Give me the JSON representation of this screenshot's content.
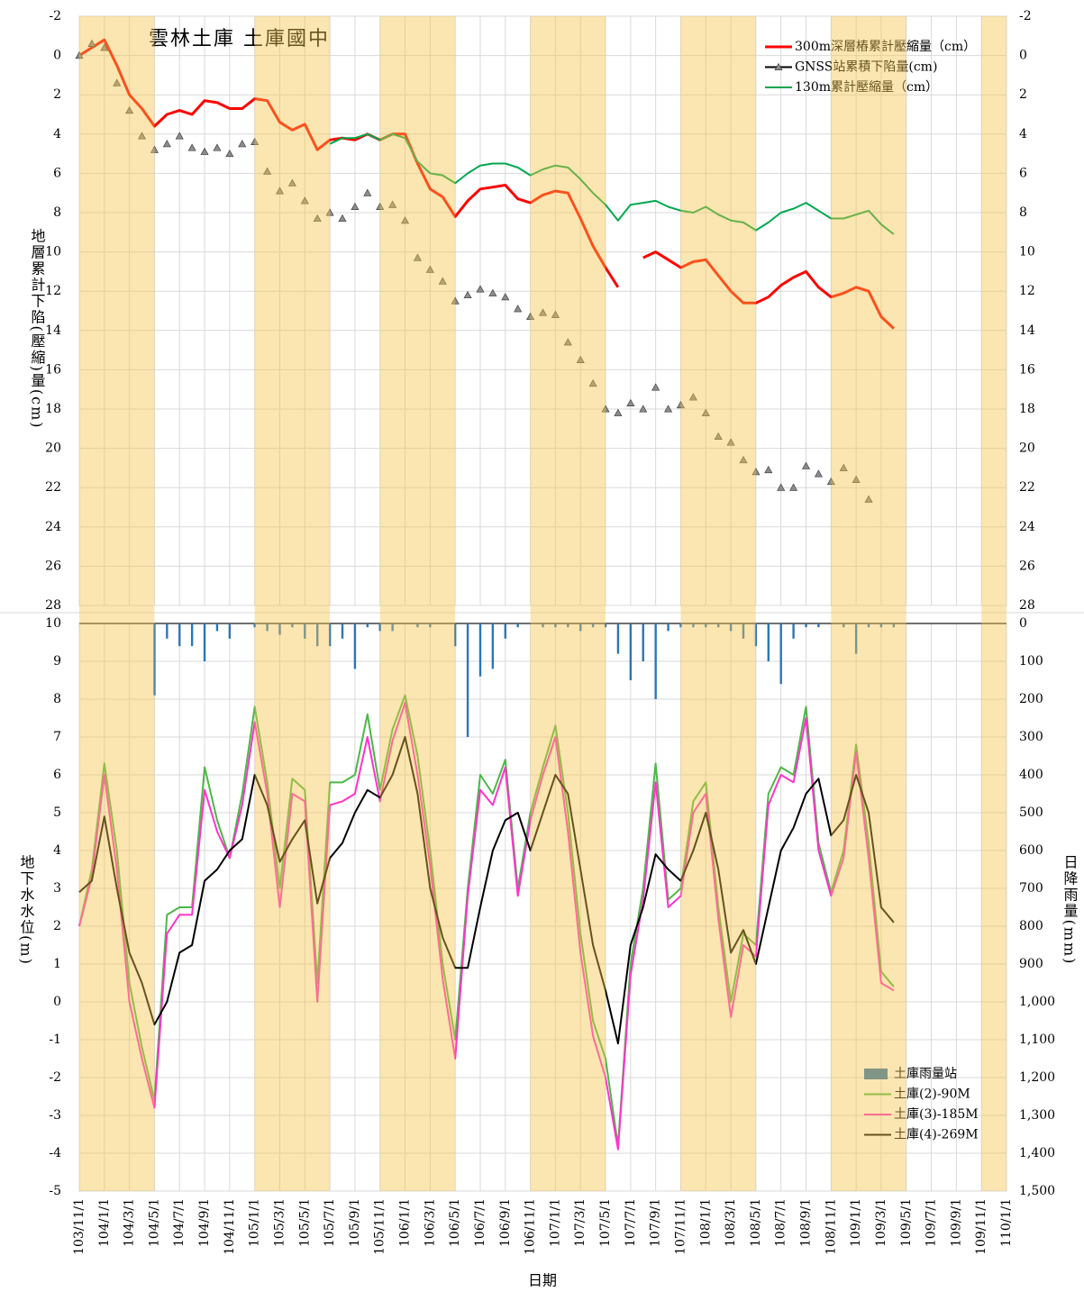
{
  "chart_data": [
    {
      "type": "line",
      "title": "雲林土庫 土庫國中",
      "y_label": "地層累計下陷(壓縮)量(cm)",
      "ylim": [
        28,
        -2
      ],
      "yticks": [
        -2,
        0,
        2,
        4,
        6,
        8,
        10,
        12,
        14,
        16,
        18,
        20,
        22,
        24,
        26,
        28
      ],
      "grid": true,
      "legend": "top-right",
      "x": [
        "103/11/1",
        "103/12/1",
        "104/1/1",
        "104/2/1",
        "104/3/1",
        "104/4/1",
        "104/5/1",
        "104/6/1",
        "104/7/1",
        "104/8/1",
        "104/9/1",
        "104/10/1",
        "104/11/1",
        "104/12/1",
        "105/1/1",
        "105/2/1",
        "105/3/1",
        "105/4/1",
        "105/5/1",
        "105/6/1",
        "105/7/1",
        "105/8/1",
        "105/9/1",
        "105/10/1",
        "105/11/1",
        "105/12/1",
        "106/1/1",
        "106/2/1",
        "106/3/1",
        "106/4/1",
        "106/5/1",
        "106/6/1",
        "106/7/1",
        "106/8/1",
        "106/9/1",
        "106/10/1",
        "106/11/1",
        "106/12/1",
        "107/1/1",
        "107/2/1",
        "107/3/1",
        "107/4/1",
        "107/5/1",
        "107/6/1",
        "107/7/1",
        "107/8/1",
        "107/9/1",
        "107/10/1",
        "107/11/1",
        "107/12/1",
        "108/1/1",
        "108/2/1",
        "108/3/1",
        "108/4/1",
        "108/5/1",
        "108/6/1",
        "108/7/1",
        "108/8/1",
        "108/9/1",
        "108/10/1",
        "108/11/1",
        "108/12/1",
        "109/1/1",
        "109/2/1",
        "109/3/1",
        "109/4/1"
      ],
      "series": [
        {
          "name": "300m深層樁累計壓縮量（cm）",
          "color": "#ff0000",
          "values": [
            0,
            -0.4,
            -0.8,
            0.5,
            2.0,
            2.7,
            3.6,
            3.0,
            2.8,
            3.0,
            2.3,
            2.4,
            2.7,
            2.7,
            2.2,
            2.3,
            3.4,
            3.8,
            3.5,
            4.8,
            4.3,
            4.2,
            4.3,
            4.0,
            4.3,
            4.0,
            4.0,
            5.5,
            6.8,
            7.2,
            8.2,
            7.4,
            6.8,
            6.7,
            6.6,
            7.3,
            7.5,
            7.1,
            6.9,
            7.0,
            8.3,
            9.7,
            10.8,
            11.8,
            null,
            10.3,
            10.0,
            10.4,
            10.8,
            10.5,
            10.4,
            11.2,
            12.0,
            12.6,
            12.6,
            12.3,
            11.7,
            11.3,
            11.0,
            11.8,
            12.3,
            12.1,
            11.8,
            12.0,
            13.3,
            13.9
          ]
        },
        {
          "name": "GNSS站累積下陷量(cm)",
          "color": "#000000",
          "marker": "triangle",
          "marker_color": "#8c8c8c",
          "line": false,
          "values": [
            0,
            -0.6,
            -0.4,
            1.4,
            2.8,
            4.1,
            4.8,
            4.5,
            4.1,
            4.7,
            4.9,
            4.7,
            5.0,
            4.5,
            4.4,
            5.9,
            6.9,
            6.5,
            7.4,
            8.3,
            8.0,
            8.3,
            7.7,
            7.0,
            7.7,
            7.6,
            8.4,
            10.3,
            10.9,
            11.5,
            12.5,
            12.2,
            11.9,
            12.1,
            12.3,
            12.9,
            13.3,
            13.1,
            13.2,
            14.6,
            15.5,
            16.7,
            18.0,
            18.2,
            17.7,
            18.0,
            16.9,
            18.0,
            17.8,
            17.4,
            18.2,
            19.4,
            19.7,
            20.6,
            21.2,
            21.1,
            22.0,
            22.0,
            20.9,
            21.3,
            21.7,
            21.0,
            21.6,
            22.6,
            null,
            null
          ]
        },
        {
          "name": "130m累計壓縮量（cm）",
          "color": "#00a84f",
          "values": [
            null,
            null,
            null,
            null,
            null,
            null,
            null,
            null,
            null,
            null,
            null,
            null,
            null,
            null,
            null,
            null,
            null,
            null,
            null,
            null,
            4.5,
            4.2,
            4.2,
            4.0,
            4.3,
            4.0,
            4.2,
            5.4,
            6.0,
            6.1,
            6.5,
            6.0,
            5.6,
            5.5,
            5.5,
            5.7,
            6.1,
            5.8,
            5.6,
            5.7,
            6.3,
            7.0,
            7.6,
            8.4,
            7.6,
            7.5,
            7.4,
            7.7,
            7.9,
            8.0,
            7.7,
            8.1,
            8.4,
            8.5,
            8.9,
            8.5,
            8.0,
            7.8,
            7.5,
            7.9,
            8.3,
            8.3,
            8.1,
            7.9,
            8.6,
            9.1
          ]
        }
      ]
    },
    {
      "type": "line",
      "y_label": "地下水水位(m)",
      "y2_label": "日降雨量(mm)",
      "x_label": "日期",
      "xlim": [
        "103/11/1",
        "110/1/1"
      ],
      "xticks": [
        "103/11/1",
        "104/1/1",
        "104/3/1",
        "104/5/1",
        "104/7/1",
        "104/9/1",
        "104/11/1",
        "105/1/1",
        "105/3/1",
        "105/5/1",
        "105/7/1",
        "105/9/1",
        "105/11/1",
        "106/1/1",
        "106/3/1",
        "106/5/1",
        "106/7/1",
        "106/9/1",
        "106/11/1",
        "107/1/1",
        "107/3/1",
        "107/5/1",
        "107/7/1",
        "107/9/1",
        "107/11/1",
        "108/1/1",
        "108/3/1",
        "108/5/1",
        "108/7/1",
        "108/9/1",
        "108/11/1",
        "109/1/1",
        "109/3/1",
        "109/5/1",
        "109/7/1",
        "109/9/1",
        "109/11/1",
        "110/1/1"
      ],
      "ylim": [
        -5,
        10
      ],
      "yticks": [
        -5,
        -4,
        -3,
        -2,
        -1,
        0,
        1,
        2,
        3,
        4,
        5,
        6,
        7,
        8,
        9,
        10
      ],
      "y2lim": [
        1500,
        0
      ],
      "y2ticks": [
        0,
        100,
        200,
        300,
        400,
        500,
        600,
        700,
        800,
        900,
        {
          "value": 1000,
          "label": "1,000"
        },
        {
          "value": 1100,
          "label": "1,100"
        },
        {
          "value": 1200,
          "label": "1,200"
        },
        {
          "value": 1300,
          "label": "1,300"
        },
        {
          "value": 1400,
          "label": "1,400"
        },
        {
          "value": 1500,
          "label": "1,500"
        }
      ],
      "grid": true,
      "legend": "bottom-right",
      "shaded_periods": [
        [
          "103/11/1",
          "104/5/1"
        ],
        [
          "105/1/1",
          "105/7/1"
        ],
        [
          "105/11/1",
          "106/5/1"
        ],
        [
          "106/11/1",
          "107/5/1"
        ],
        [
          "107/11/1",
          "108/5/1"
        ],
        [
          "108/11/1",
          "109/5/1"
        ],
        [
          "109/11/1",
          "110/1/1"
        ]
      ],
      "shade_color": "#f6c045",
      "x": [
        "103/11/1",
        "103/12/1",
        "104/1/1",
        "104/2/1",
        "104/3/1",
        "104/4/1",
        "104/5/1",
        "104/6/1",
        "104/7/1",
        "104/8/1",
        "104/9/1",
        "104/10/1",
        "104/11/1",
        "104/12/1",
        "105/1/1",
        "105/2/1",
        "105/3/1",
        "105/4/1",
        "105/5/1",
        "105/6/1",
        "105/7/1",
        "105/8/1",
        "105/9/1",
        "105/10/1",
        "105/11/1",
        "105/12/1",
        "106/1/1",
        "106/2/1",
        "106/3/1",
        "106/4/1",
        "106/5/1",
        "106/6/1",
        "106/7/1",
        "106/8/1",
        "106/9/1",
        "106/10/1",
        "106/11/1",
        "106/12/1",
        "107/1/1",
        "107/2/1",
        "107/3/1",
        "107/4/1",
        "107/5/1",
        "107/6/1",
        "107/7/1",
        "107/8/1",
        "107/9/1",
        "107/10/1",
        "107/11/1",
        "107/12/1",
        "108/1/1",
        "108/2/1",
        "108/3/1",
        "108/4/1",
        "108/5/1",
        "108/6/1",
        "108/7/1",
        "108/8/1",
        "108/9/1",
        "108/10/1",
        "108/11/1",
        "108/12/1",
        "109/1/1",
        "109/2/1",
        "109/3/1",
        "109/4/1"
      ],
      "series": [
        {
          "name": "土庫雨量站",
          "type": "bar",
          "axis": "y2",
          "color": "#2e75b6",
          "values": [
            0,
            0,
            0,
            0,
            0,
            0,
            190,
            40,
            60,
            60,
            100,
            20,
            40,
            0,
            10,
            20,
            30,
            10,
            40,
            60,
            60,
            40,
            120,
            10,
            20,
            20,
            0,
            10,
            10,
            0,
            60,
            300,
            140,
            120,
            40,
            10,
            0,
            10,
            10,
            10,
            20,
            10,
            10,
            80,
            150,
            100,
            200,
            20,
            10,
            10,
            10,
            10,
            20,
            40,
            60,
            100,
            160,
            40,
            10,
            10,
            0,
            10,
            80,
            10,
            10,
            10
          ]
        },
        {
          "name": "土庫(2)-90M",
          "color": "#4cb848",
          "values": [
            2.0,
            3.5,
            6.3,
            4.0,
            0.5,
            -1.2,
            -2.6,
            2.3,
            2.5,
            2.5,
            6.2,
            4.8,
            3.8,
            5.5,
            7.8,
            5.8,
            3.0,
            5.9,
            5.6,
            0.5,
            5.8,
            5.8,
            6.0,
            7.6,
            5.6,
            7.2,
            8.1,
            6.5,
            4.0,
            1.0,
            -1.0,
            3.0,
            6.0,
            5.5,
            6.4,
            3.0,
            5.0,
            6.2,
            7.3,
            5.0,
            1.8,
            -0.5,
            -1.5,
            -3.8,
            1.0,
            3.0,
            6.3,
            2.7,
            3.0,
            5.3,
            5.8,
            2.5,
            0.0,
            1.8,
            1.5,
            5.5,
            6.2,
            6.0,
            7.8,
            4.2,
            2.9,
            4.0,
            6.8,
            4.2,
            0.8,
            0.4
          ]
        },
        {
          "name": "土庫(3)-185M",
          "color": "#ff33cc",
          "values": [
            2.0,
            3.3,
            6.0,
            3.5,
            0.0,
            -1.5,
            -2.8,
            1.8,
            2.3,
            2.3,
            5.6,
            4.5,
            3.8,
            5.2,
            7.4,
            5.5,
            2.5,
            5.5,
            5.3,
            0.0,
            5.2,
            5.3,
            5.5,
            7.0,
            5.3,
            6.9,
            7.9,
            6.0,
            3.6,
            0.6,
            -1.5,
            2.8,
            5.6,
            5.2,
            6.2,
            2.8,
            4.8,
            6.0,
            7.0,
            4.5,
            1.3,
            -0.9,
            -2.0,
            -3.9,
            0.7,
            2.7,
            5.8,
            2.5,
            2.8,
            5.0,
            5.5,
            2.2,
            -0.4,
            1.5,
            1.2,
            5.2,
            6.0,
            5.8,
            7.5,
            4.0,
            2.8,
            3.8,
            6.6,
            3.8,
            0.5,
            0.3
          ]
        },
        {
          "name": "土庫(4)-269M",
          "color": "#000000",
          "values": [
            2.9,
            3.2,
            4.9,
            3.0,
            1.3,
            0.5,
            -0.6,
            0.0,
            1.3,
            1.5,
            3.2,
            3.5,
            4.0,
            4.3,
            6.0,
            5.2,
            3.7,
            4.3,
            4.8,
            2.6,
            3.8,
            4.2,
            5.0,
            5.6,
            5.4,
            6.0,
            7.0,
            5.5,
            3.0,
            1.7,
            0.9,
            0.9,
            2.5,
            4.0,
            4.8,
            5.0,
            4.0,
            5.0,
            6.0,
            5.5,
            3.5,
            1.5,
            0.3,
            -1.1,
            1.5,
            2.5,
            3.9,
            3.5,
            3.2,
            4.0,
            5.0,
            3.5,
            1.3,
            1.9,
            1.0,
            2.5,
            4.0,
            4.6,
            5.5,
            5.9,
            4.4,
            4.8,
            6.0,
            5.0,
            2.5,
            2.1
          ]
        }
      ]
    }
  ]
}
